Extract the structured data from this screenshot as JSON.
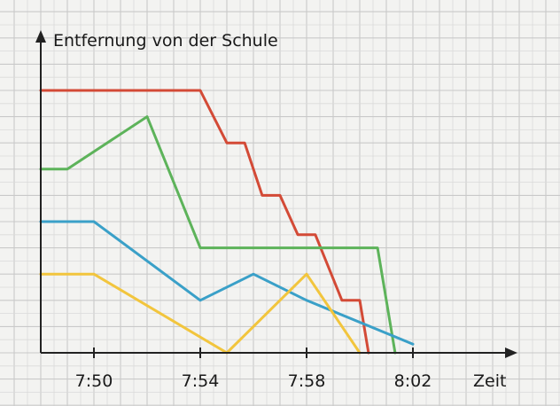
{
  "chart_data": {
    "type": "line",
    "ylabel": "Entfernung von der Schule",
    "xlabel": "Zeit",
    "x_tick_labels": [
      "7:50",
      "7:54",
      "7:58",
      "8:02"
    ],
    "x_tick_values": [
      110,
      114,
      118,
      122
    ],
    "xlim": [
      108,
      125
    ],
    "ylim": [
      0,
      10
    ],
    "grid": true,
    "series": [
      {
        "color": "#d34a36",
        "x": [
          108,
          114,
          115,
          115.67,
          116.33,
          117,
          117.67,
          118.33,
          119.33,
          120,
          120.33
        ],
        "y": [
          10,
          10,
          8,
          8,
          6,
          6,
          4.5,
          4.5,
          2,
          2,
          0
        ]
      },
      {
        "color": "#5db35a",
        "x": [
          108,
          109,
          112,
          114,
          120.67,
          121.33
        ],
        "y": [
          7,
          7,
          9,
          4,
          4,
          0
        ]
      },
      {
        "color": "#3aa0c8",
        "x": [
          108,
          110,
          114,
          116,
          118,
          122
        ],
        "y": [
          5,
          5,
          2,
          3,
          2,
          0.33
        ]
      },
      {
        "color": "#f2c53d",
        "x": [
          108,
          110,
          115,
          118,
          120
        ],
        "y": [
          3,
          3,
          0,
          3,
          0
        ]
      }
    ]
  }
}
